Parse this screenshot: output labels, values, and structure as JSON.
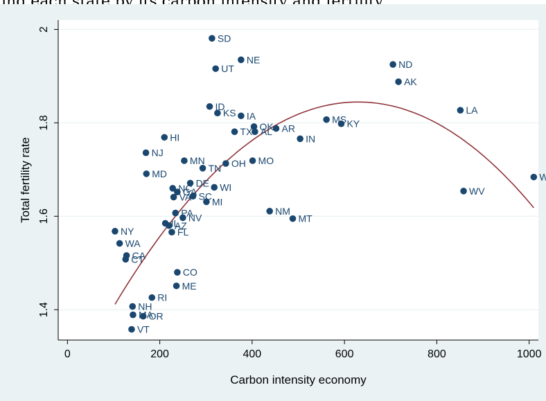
{
  "caption_text": "ing each state by its carbon intensity and fertility",
  "chart_data": {
    "type": "scatter",
    "xlabel": "Carbon intensity economy",
    "ylabel": "Total fertility rate",
    "xlim": [
      -20,
      1020
    ],
    "ylim": [
      1.335,
      2.02
    ],
    "xticks": [
      0,
      200,
      400,
      600,
      800,
      1000
    ],
    "yticks": [
      1.4,
      1.6,
      1.8,
      2
    ],
    "ytick_labels": [
      "1.4",
      "1.6",
      "1.8",
      "2"
    ],
    "grid": true,
    "marker_color": "#1a476f",
    "fit_color": "#90353b",
    "points": [
      {
        "label": "SD",
        "x": 313,
        "y": 1.981
      },
      {
        "label": "NE",
        "x": 376,
        "y": 1.935
      },
      {
        "label": "UT",
        "x": 321,
        "y": 1.916
      },
      {
        "label": "ND",
        "x": 705,
        "y": 1.925
      },
      {
        "label": "AK",
        "x": 717,
        "y": 1.888
      },
      {
        "label": "ID",
        "x": 308,
        "y": 1.835
      },
      {
        "label": "KS",
        "x": 325,
        "y": 1.821
      },
      {
        "label": "IA",
        "x": 376,
        "y": 1.815
      },
      {
        "label": "LA",
        "x": 851,
        "y": 1.827
      },
      {
        "label": "MS",
        "x": 561,
        "y": 1.807
      },
      {
        "label": "KY",
        "x": 593,
        "y": 1.798
      },
      {
        "label": "OK",
        "x": 404,
        "y": 1.792
      },
      {
        "label": "AR",
        "x": 452,
        "y": 1.788
      },
      {
        "label": "TX",
        "x": 362,
        "y": 1.781
      },
      {
        "label": "AL",
        "x": 406,
        "y": 1.781
      },
      {
        "label": "IN",
        "x": 504,
        "y": 1.766
      },
      {
        "label": "HI",
        "x": 210,
        "y": 1.769
      },
      {
        "label": "NJ",
        "x": 170,
        "y": 1.736
      },
      {
        "label": "MN",
        "x": 253,
        "y": 1.719
      },
      {
        "label": "MO",
        "x": 401,
        "y": 1.719
      },
      {
        "label": "OH",
        "x": 343,
        "y": 1.713
      },
      {
        "label": "TN",
        "x": 293,
        "y": 1.703
      },
      {
        "label": "MD",
        "x": 171,
        "y": 1.691
      },
      {
        "label": "WY",
        "x": 1010,
        "y": 1.684
      },
      {
        "label": "DE",
        "x": 266,
        "y": 1.671
      },
      {
        "label": "WI",
        "x": 318,
        "y": 1.662
      },
      {
        "label": "NC",
        "x": 228,
        "y": 1.66
      },
      {
        "label": "GA",
        "x": 238,
        "y": 1.652
      },
      {
        "label": "WV",
        "x": 858,
        "y": 1.654
      },
      {
        "label": "SC",
        "x": 272,
        "y": 1.643
      },
      {
        "label": "VA",
        "x": 230,
        "y": 1.641
      },
      {
        "label": "MI",
        "x": 301,
        "y": 1.631
      },
      {
        "label": "NM",
        "x": 438,
        "y": 1.611
      },
      {
        "label": "PA",
        "x": 234,
        "y": 1.607
      },
      {
        "label": "MT",
        "x": 488,
        "y": 1.595
      },
      {
        "label": "NV",
        "x": 250,
        "y": 1.597
      },
      {
        "label": "IL",
        "x": 212,
        "y": 1.585
      },
      {
        "label": "AZ",
        "x": 220,
        "y": 1.58
      },
      {
        "label": "FL",
        "x": 226,
        "y": 1.566
      },
      {
        "label": "NY",
        "x": 103,
        "y": 1.568
      },
      {
        "label": "WA",
        "x": 113,
        "y": 1.542
      },
      {
        "label": "CA",
        "x": 128,
        "y": 1.516
      },
      {
        "label": "CT",
        "x": 126,
        "y": 1.508
      },
      {
        "label": "CO",
        "x": 238,
        "y": 1.48
      },
      {
        "label": "ME",
        "x": 236,
        "y": 1.451
      },
      {
        "label": "RI",
        "x": 183,
        "y": 1.426
      },
      {
        "label": "NH",
        "x": 141,
        "y": 1.407
      },
      {
        "label": "MA",
        "x": 142,
        "y": 1.389
      },
      {
        "label": "OR",
        "x": 164,
        "y": 1.386
      },
      {
        "label": "VT",
        "x": 139,
        "y": 1.358
      }
    ],
    "fit_line": {
      "type": "quadratic",
      "x_range": [
        103,
        1010
      ],
      "coefficients": {
        "a": -1.563e-06,
        "b": 0.0019675,
        "c": 1.2255
      }
    }
  }
}
